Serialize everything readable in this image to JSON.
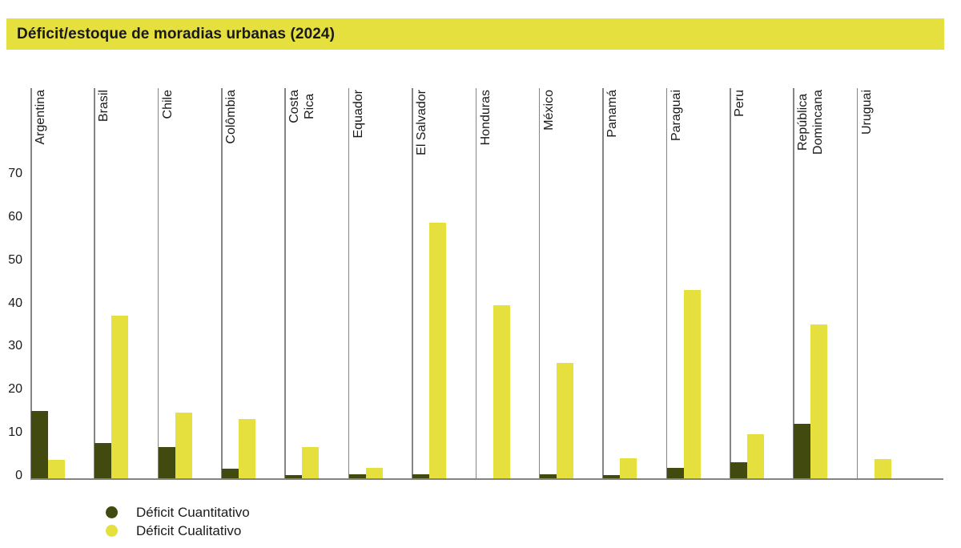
{
  "title": "Déficit/estoque de moradias urbanas (2024)",
  "colors": {
    "accent_yellow": "#e5e03e",
    "dark_olive": "#424a0f",
    "axis_gray": "#848484",
    "text_dark": "#1a1a1a"
  },
  "legend": [
    {
      "label": "Déficit Cuantitativo",
      "color": "#424a0f"
    },
    {
      "label": "Déficit Cualitativo",
      "color": "#e5e03e"
    }
  ],
  "chart_data": {
    "type": "bar",
    "title": "Déficit/estoque de moradias urbanas (2024)",
    "categories": [
      "Argentina",
      "Brasil",
      "Chile",
      "Colômbia",
      "Costa\nRica",
      "Equador",
      "El Salvador",
      "Honduras",
      "México",
      "Panamá",
      "Paraguai",
      "Peru",
      "República\nDomincana",
      "Uruguai"
    ],
    "series": [
      {
        "name": "Déficit Cuantitativo",
        "color": "#424a0f",
        "values": [
          15.5,
          8,
          7,
          2,
          0.5,
          0.7,
          0.8,
          0,
          0.8,
          0.5,
          2.3,
          3.5,
          12.5,
          0
        ]
      },
      {
        "name": "Déficit Cualitativo",
        "color": "#e5e03e",
        "values": [
          4,
          37.5,
          15,
          13.5,
          7,
          2.2,
          59,
          40,
          26.5,
          4.5,
          43.5,
          10,
          35.5,
          4.3
        ]
      }
    ],
    "xlabel": "",
    "ylabel": "",
    "yticks": [
      0,
      10,
      20,
      30,
      40,
      50,
      60,
      70
    ],
    "ylim": [
      0,
      75
    ],
    "grid": "vertical-category-separators-only",
    "legend_position": "bottom-left"
  }
}
